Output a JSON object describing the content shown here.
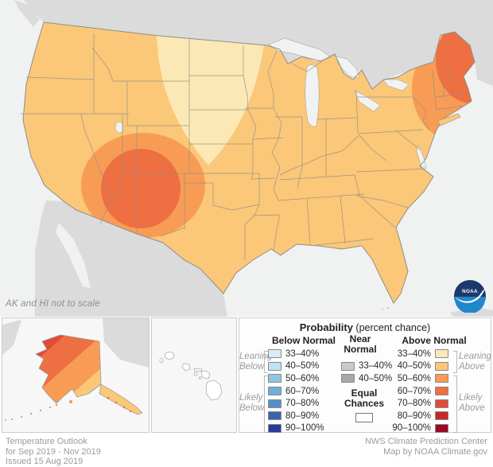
{
  "map": {
    "scale_note": "AK and HI not to scale",
    "regions": {
      "conus": [
        {
          "area": "most of contiguous US",
          "class": "Above Normal 40–50%"
        },
        {
          "area": "northern Plains (E Montana, Dakotas, Nebraska, W Minnesota)",
          "class": "Above Normal 33–40%"
        },
        {
          "area": "Four Corners outer ring",
          "class": "Above Normal 50–60%"
        },
        {
          "area": "Four Corners core (AZ/NM/UT/CO)",
          "class": "Above Normal 60–70%"
        },
        {
          "area": "Northeast (E New York, NJ, CT, RI)",
          "class": "Above Normal 50–60%"
        },
        {
          "area": "New England (ME, NH, VT, MA)",
          "class": "Above Normal 60–70%"
        }
      ],
      "alaska": [
        {
          "area": "northwest",
          "class": "Above Normal 70–80%"
        },
        {
          "area": "west-central",
          "class": "Above Normal 60–70%"
        },
        {
          "area": "central",
          "class": "Above Normal 50–60%"
        },
        {
          "area": "southeast and panhandle",
          "class": "Above Normal 40–50%"
        }
      ],
      "hawaii": [
        {
          "area": "all islands",
          "class": "Equal Chances"
        }
      ]
    }
  },
  "colors": {
    "ocean": "#F0F1F1",
    "foreign_land": "#DBDBDC",
    "lake": "#F1F2F2",
    "border": "#8F8F87",
    "equal_chances": "#FFFFFF",
    "below": [
      "#D9EDF7",
      "#C0E2F1",
      "#8FC6E0",
      "#6FAED8",
      "#5590C8",
      "#3C64AE",
      "#2B3A9D"
    ],
    "near": [
      "#C9C9C9",
      "#A8A8A8"
    ],
    "above": [
      "#FCE8B4",
      "#FBC778",
      "#F89C55",
      "#EE6F41",
      "#E14B38",
      "#C62A28",
      "#9B0A24"
    ],
    "logo_navy": "#1B3A6B",
    "logo_blue": "#2187CC"
  },
  "legend": {
    "title": "Probability",
    "title_suffix": "(percent chance)",
    "below_header": "Below Normal",
    "near_header_line1": "Near",
    "near_header_line2": "Normal",
    "above_header": "Above Normal",
    "ranges": [
      "33–40%",
      "40–50%",
      "50–60%",
      "60–70%",
      "70–80%",
      "80–90%",
      "90–100%"
    ],
    "near_ranges": [
      "33–40%",
      "40–50%"
    ],
    "equal_line1": "Equal",
    "equal_line2": "Chances",
    "leaning_below": [
      "Leaning",
      "Below"
    ],
    "likely_below": [
      "Likely",
      "Below"
    ],
    "leaning_above": [
      "Leaning",
      "Above"
    ],
    "likely_above": [
      "Likely",
      "Above"
    ]
  },
  "footer": {
    "left_lines": [
      "Temperature Outlook",
      "for Sep 2019 - Nov 2019",
      "Issued 15 Aug 2019"
    ],
    "right_lines": [
      "NWS Climate Prediction Center",
      "Map by NOAA Climate.gov"
    ]
  },
  "logo": {
    "label": "NOAA"
  }
}
